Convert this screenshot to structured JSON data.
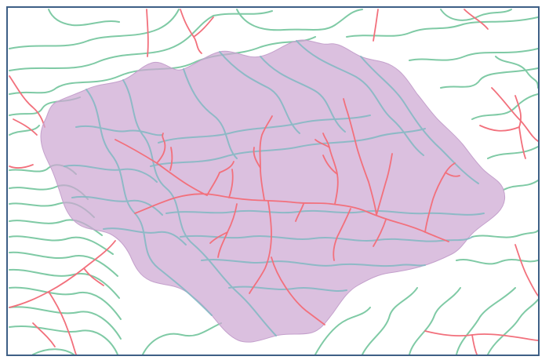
{
  "map": {
    "background_color": "#ffffff",
    "frame_color": "#3e5f86",
    "contour_color": "#7fcaa5",
    "contour_inside_color": "#86b9c4",
    "stream_color": "#f2707c",
    "watershed_fill": "#cda7d2",
    "watershed_opacity": 0.72,
    "layers": [
      "contour-lines",
      "stream-network",
      "watershed-polygon"
    ],
    "text": []
  }
}
